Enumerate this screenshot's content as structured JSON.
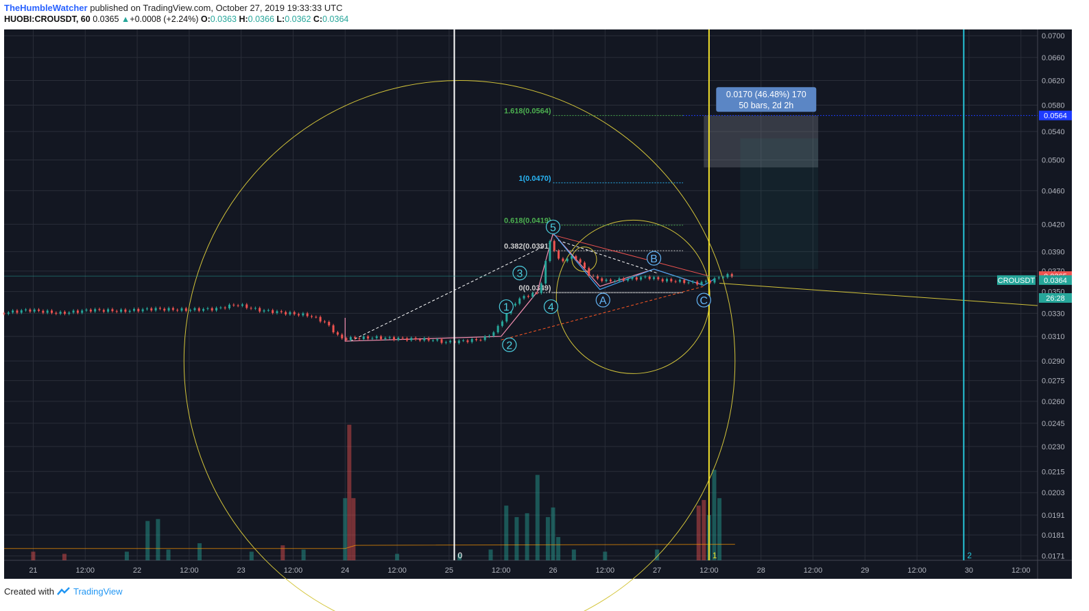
{
  "header": {
    "author": "TheHumbleWatcher",
    "published_text": "published on TradingView.com, October 27, 2019 19:33:33 UTC",
    "symbol": "HUOBI:CROUSDT, 60",
    "last": "0.0365",
    "change": "+0.0008 (+2.24%)",
    "open_label": "O:",
    "open": "0.0363",
    "high_label": "H:",
    "high": "0.0366",
    "low_label": "L:",
    "low": "0.0362",
    "close_label": "C:",
    "close": "0.0364"
  },
  "footer": {
    "created_with": "Created with",
    "brand": "TradingView"
  },
  "colors": {
    "background": "#131722",
    "grid": "#2a2e39",
    "up": "#26a69a",
    "down": "#ef5350",
    "yellow": "#d4c53a",
    "cyan": "#26c6da",
    "fib_green": "#4caf50",
    "fib_cyan": "#29b6f6",
    "measure_box": "#5b86c5",
    "price_tag_red": "#ef5350",
    "price_tag_green": "#26a69a",
    "price_tag_blue": "#1e3cff"
  },
  "chart_data": {
    "type": "candlestick",
    "symbol": "CROUSDT",
    "timeframe": "60",
    "x_ticks": [
      "21",
      "12:00",
      "22",
      "12:00",
      "23",
      "12:00",
      "24",
      "12:00",
      "25",
      "12:00",
      "26",
      "12:00",
      "27",
      "12:00",
      "28",
      "12:00",
      "29",
      "12:00",
      "30",
      "12:00"
    ],
    "y_ticks": [
      "0.0700",
      "0.0660",
      "0.0620",
      "0.0580",
      "0.0540",
      "0.0500",
      "0.0460",
      "0.0420",
      "0.0390",
      "0.0370",
      "0.0350",
      "0.0330",
      "0.0310",
      "0.0290",
      "0.0275",
      "0.0260",
      "0.0245",
      "0.0230",
      "0.0215",
      "0.0203",
      "0.0191",
      "0.0181",
      "0.0171"
    ],
    "y_scale": "log",
    "ylim": [
      0.0169,
      0.0712
    ],
    "x_range_days": [
      20.72,
      30.66
    ],
    "price_path": [
      [
        20.72,
        0.033
      ],
      [
        21.0,
        0.0333
      ],
      [
        21.3,
        0.033
      ],
      [
        21.6,
        0.0333
      ],
      [
        21.9,
        0.0332
      ],
      [
        22.2,
        0.0334
      ],
      [
        22.5,
        0.0333
      ],
      [
        22.8,
        0.0334
      ],
      [
        23.0,
        0.0338
      ],
      [
        23.2,
        0.0333
      ],
      [
        23.5,
        0.033
      ],
      [
        23.7,
        0.0328
      ],
      [
        23.85,
        0.0322
      ],
      [
        24.0,
        0.0308
      ],
      [
        24.3,
        0.0309
      ],
      [
        24.6,
        0.0308
      ],
      [
        24.9,
        0.0307
      ],
      [
        25.0,
        0.0305
      ],
      [
        25.3,
        0.0307
      ],
      [
        25.4,
        0.0309
      ],
      [
        25.5,
        0.0316
      ],
      [
        25.65,
        0.0338
      ],
      [
        25.75,
        0.0345
      ],
      [
        25.9,
        0.0349
      ],
      [
        25.96,
        0.037
      ],
      [
        26.0,
        0.0405
      ],
      [
        26.1,
        0.038
      ],
      [
        26.25,
        0.0385
      ],
      [
        26.4,
        0.0365
      ],
      [
        26.55,
        0.036
      ],
      [
        26.75,
        0.0362
      ],
      [
        26.95,
        0.0364
      ],
      [
        27.1,
        0.0361
      ],
      [
        27.25,
        0.036
      ],
      [
        27.42,
        0.0358
      ],
      [
        27.55,
        0.036
      ],
      [
        27.7,
        0.0366
      ],
      [
        27.75,
        0.0365
      ]
    ],
    "volume": [
      [
        21.0,
        0.0173
      ],
      [
        21.3,
        0.0172
      ],
      [
        21.9,
        0.0173
      ],
      [
        22.1,
        0.0188
      ],
      [
        22.2,
        0.0189
      ],
      [
        22.3,
        0.0174
      ],
      [
        22.6,
        0.0177
      ],
      [
        23.1,
        0.0173
      ],
      [
        23.4,
        0.0176
      ],
      [
        23.6,
        0.0174
      ],
      [
        24.0,
        0.02
      ],
      [
        24.04,
        0.0244
      ],
      [
        24.08,
        0.02
      ],
      [
        24.5,
        0.0172
      ],
      [
        25.1,
        0.0172
      ],
      [
        25.4,
        0.0174
      ],
      [
        25.55,
        0.0196
      ],
      [
        25.65,
        0.019
      ],
      [
        25.75,
        0.0192
      ],
      [
        25.85,
        0.0213
      ],
      [
        25.95,
        0.019
      ],
      [
        26.0,
        0.0195
      ],
      [
        26.05,
        0.018
      ],
      [
        26.2,
        0.0174
      ],
      [
        26.5,
        0.0173
      ],
      [
        27.0,
        0.0174
      ],
      [
        27.4,
        0.0196
      ],
      [
        27.45,
        0.0199
      ],
      [
        27.5,
        0.0191
      ],
      [
        27.55,
        0.0216
      ],
      [
        27.6,
        0.02
      ]
    ],
    "fib_levels": [
      {
        "label": "1.618(0.0564)",
        "price": 0.0564
      },
      {
        "label": "1(0.0470)",
        "price": 0.047
      },
      {
        "label": "0.618(0.0419)",
        "price": 0.0419
      },
      {
        "label": "0.382(0.0391)",
        "price": 0.0391
      },
      {
        "label": "0(0.0349)",
        "price": 0.0349
      }
    ],
    "wave_labels": [
      {
        "label": "1",
        "x": 25.55,
        "y": 0.0336
      },
      {
        "label": "2",
        "x": 25.58,
        "y": 0.0303
      },
      {
        "label": "3",
        "x": 25.68,
        "y": 0.0368
      },
      {
        "label": "4",
        "x": 25.98,
        "y": 0.0336
      },
      {
        "label": "5",
        "x": 26.0,
        "y": 0.0417
      },
      {
        "label": "A",
        "x": 26.48,
        "y": 0.0342
      },
      {
        "label": "B",
        "x": 26.97,
        "y": 0.0383
      },
      {
        "label": "C",
        "x": 27.45,
        "y": 0.0342
      }
    ],
    "vertical_lines": [
      {
        "label": "0",
        "x": 25.05,
        "color": "#ffffff"
      },
      {
        "label": "1",
        "x": 27.5,
        "color": "#f1e02b"
      },
      {
        "label": "2",
        "x": 29.95,
        "color": "#26c6da"
      }
    ],
    "measure": {
      "line1": "0.0170 (46.48%) 170",
      "line2": "50 bars, 2d 2h"
    },
    "price_tags": [
      {
        "text": "0.0564",
        "price": 0.0564
      },
      {
        "text": "0.0365",
        "price": 0.0365
      },
      {
        "text": "CROUSDT",
        "price": 0.0364
      },
      {
        "text": "0.0364",
        "price": 0.0364
      },
      {
        "text": "26:28",
        "price": 0.0344
      }
    ]
  }
}
